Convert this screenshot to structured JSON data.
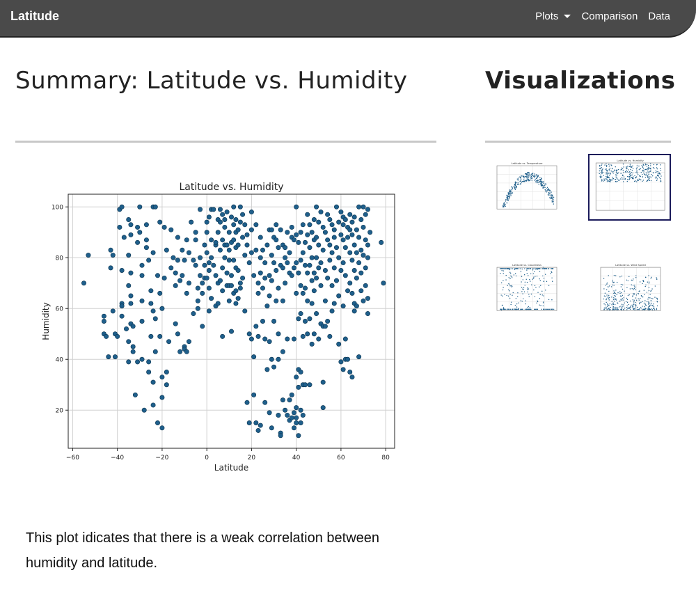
{
  "navbar": {
    "brand": "Latitude",
    "links": [
      {
        "label": "Plots",
        "dropdown": true
      },
      {
        "label": "Comparison",
        "dropdown": false
      },
      {
        "label": "Data",
        "dropdown": false
      }
    ]
  },
  "main": {
    "title": "Summary: Latitude vs. Humidity",
    "caption": "This plot idicates that there is a weak correlation between humidity and latitude."
  },
  "sidebar": {
    "title": "Visualizations",
    "thumbnails": [
      {
        "title": "Latitude vs. Temperature",
        "selected": false
      },
      {
        "title": "Latitude vs. Humidity",
        "selected": true
      },
      {
        "title": "Latitude vs. Cloudiness",
        "selected": false
      },
      {
        "title": "Latitude vs. Wind Speed",
        "selected": false
      }
    ]
  },
  "colors": {
    "navbar": "#4a4a4a",
    "marker": "#1f5f8b",
    "marker_edge": "#0d3550",
    "selected_border": "#1a1a5a"
  },
  "chart_data": {
    "type": "scatter",
    "title": "Latitude vs. Humidity",
    "xlabel": "Latitude",
    "ylabel": "Humidity",
    "xlim": [
      -62,
      84
    ],
    "ylim": [
      5,
      105
    ],
    "xticks": [
      -60,
      -40,
      -20,
      0,
      20,
      40,
      60,
      80
    ],
    "yticks": [
      20,
      40,
      60,
      80,
      100
    ],
    "grid": true,
    "points": [
      [
        -55,
        70
      ],
      [
        -53,
        81
      ],
      [
        -46,
        57
      ],
      [
        -46,
        55
      ],
      [
        -46,
        50
      ],
      [
        -45,
        49
      ],
      [
        -44,
        41
      ],
      [
        -43,
        83
      ],
      [
        -43,
        76
      ],
      [
        -42,
        81
      ],
      [
        -42,
        59
      ],
      [
        -41,
        50
      ],
      [
        -41,
        41
      ],
      [
        -40,
        49
      ],
      [
        -39,
        99
      ],
      [
        -39,
        92
      ],
      [
        -38,
        100
      ],
      [
        -38,
        75
      ],
      [
        -38,
        62
      ],
      [
        -38,
        61
      ],
      [
        -38,
        57
      ],
      [
        -37,
        88
      ],
      [
        -36,
        52
      ],
      [
        -35,
        95
      ],
      [
        -35,
        81
      ],
      [
        -35,
        69
      ],
      [
        -35,
        47
      ],
      [
        -35,
        39
      ],
      [
        -34,
        93
      ],
      [
        -34,
        89
      ],
      [
        -34,
        74
      ],
      [
        -34,
        65
      ],
      [
        -34,
        62
      ],
      [
        -34,
        54
      ],
      [
        -33,
        53
      ],
      [
        -33,
        45
      ],
      [
        -33,
        43
      ],
      [
        -32,
        26
      ],
      [
        -31,
        92
      ],
      [
        -31,
        86
      ],
      [
        -31,
        39
      ],
      [
        -30,
        100
      ],
      [
        -30,
        90
      ],
      [
        -29,
        77
      ],
      [
        -29,
        73
      ],
      [
        -29,
        63
      ],
      [
        -29,
        55
      ],
      [
        -29,
        40
      ],
      [
        -28,
        20
      ],
      [
        -27,
        93
      ],
      [
        -27,
        87
      ],
      [
        -27,
        84
      ],
      [
        -26,
        79
      ],
      [
        -26,
        39
      ],
      [
        -26,
        35
      ],
      [
        -25,
        67
      ],
      [
        -25,
        62
      ],
      [
        -25,
        49
      ],
      [
        -24,
        100
      ],
      [
        -24,
        82
      ],
      [
        -24,
        59
      ],
      [
        -24,
        31
      ],
      [
        -24,
        22
      ],
      [
        -23,
        100
      ],
      [
        -23,
        56
      ],
      [
        -23,
        43
      ],
      [
        -22,
        15
      ],
      [
        -22,
        73
      ],
      [
        -21,
        94
      ],
      [
        -21,
        66
      ],
      [
        -21,
        49
      ],
      [
        -20,
        60
      ],
      [
        -20,
        33
      ],
      [
        -20,
        25
      ],
      [
        -20,
        13
      ],
      [
        -19,
        92
      ],
      [
        -19,
        72
      ],
      [
        -18,
        35
      ],
      [
        -18,
        30
      ],
      [
        -18,
        83
      ],
      [
        -17,
        47
      ],
      [
        -16,
        91
      ],
      [
        -16,
        76
      ],
      [
        -15,
        80
      ],
      [
        -14,
        74
      ],
      [
        -14,
        69
      ],
      [
        -14,
        54
      ],
      [
        -13,
        88
      ],
      [
        -13,
        79
      ],
      [
        -13,
        50
      ],
      [
        -12,
        71
      ],
      [
        -12,
        43
      ],
      [
        -11,
        73
      ],
      [
        -11,
        83
      ],
      [
        -10,
        45
      ],
      [
        -10,
        44
      ],
      [
        -10,
        79
      ],
      [
        -9,
        43
      ],
      [
        -9,
        66
      ],
      [
        -9,
        87
      ],
      [
        -8,
        82
      ],
      [
        -8,
        70
      ],
      [
        -8,
        47
      ],
      [
        -7,
        94
      ],
      [
        -6,
        79
      ],
      [
        -6,
        58
      ],
      [
        -5,
        90
      ],
      [
        -5,
        87
      ],
      [
        -5,
        77
      ],
      [
        -4,
        68
      ],
      [
        -4,
        63
      ],
      [
        -4,
        60
      ],
      [
        -3,
        99
      ],
      [
        -3,
        80
      ],
      [
        -3,
        73
      ],
      [
        -2,
        70
      ],
      [
        -2,
        66
      ],
      [
        -2,
        53
      ],
      [
        -1,
        85
      ],
      [
        -1,
        77
      ],
      [
        -1,
        72
      ],
      [
        0,
        94
      ],
      [
        0,
        90
      ],
      [
        0,
        82
      ],
      [
        0,
        72
      ],
      [
        1,
        96
      ],
      [
        1,
        78
      ],
      [
        1,
        75
      ],
      [
        1,
        68
      ],
      [
        1,
        59
      ],
      [
        2,
        99
      ],
      [
        2,
        87
      ],
      [
        2,
        80
      ],
      [
        2,
        64
      ],
      [
        3,
        99
      ],
      [
        3,
        77
      ],
      [
        4,
        85
      ],
      [
        4,
        73
      ],
      [
        4,
        61
      ],
      [
        4,
        86
      ],
      [
        5,
        95
      ],
      [
        5,
        90
      ],
      [
        5,
        70
      ],
      [
        5,
        62
      ],
      [
        6,
        99
      ],
      [
        6,
        94
      ],
      [
        6,
        83
      ],
      [
        6,
        71
      ],
      [
        7,
        97
      ],
      [
        7,
        87
      ],
      [
        7,
        76
      ],
      [
        7,
        49
      ],
      [
        7,
        67
      ],
      [
        8,
        95
      ],
      [
        8,
        92
      ],
      [
        8,
        85
      ],
      [
        8,
        80
      ],
      [
        9,
        98
      ],
      [
        9,
        85
      ],
      [
        9,
        74
      ],
      [
        9,
        69
      ],
      [
        10,
        90
      ],
      [
        10,
        83
      ],
      [
        10,
        69
      ],
      [
        10,
        63
      ],
      [
        10,
        79
      ],
      [
        11,
        96
      ],
      [
        11,
        86
      ],
      [
        11,
        73
      ],
      [
        11,
        69
      ],
      [
        11,
        51
      ],
      [
        12,
        100
      ],
      [
        12,
        93
      ],
      [
        12,
        87
      ],
      [
        12,
        79
      ],
      [
        12,
        66
      ],
      [
        13,
        95
      ],
      [
        13,
        90
      ],
      [
        13,
        84
      ],
      [
        13,
        76
      ],
      [
        13,
        67
      ],
      [
        13,
        62
      ],
      [
        14,
        91
      ],
      [
        14,
        85
      ],
      [
        14,
        75
      ],
      [
        14,
        64
      ],
      [
        15,
        100
      ],
      [
        15,
        94
      ],
      [
        15,
        70
      ],
      [
        15,
        68
      ],
      [
        16,
        97
      ],
      [
        16,
        88
      ],
      [
        16,
        72
      ],
      [
        17,
        93
      ],
      [
        17,
        81
      ],
      [
        17,
        59
      ],
      [
        18,
        89
      ],
      [
        18,
        85
      ],
      [
        18,
        23
      ],
      [
        19,
        78
      ],
      [
        19,
        50
      ],
      [
        19,
        15
      ],
      [
        20,
        98
      ],
      [
        20,
        91
      ],
      [
        20,
        82
      ],
      [
        20,
        48
      ],
      [
        21,
        73
      ],
      [
        21,
        41
      ],
      [
        21,
        26
      ],
      [
        22,
        93
      ],
      [
        22,
        83
      ],
      [
        22,
        53
      ],
      [
        22,
        15
      ],
      [
        23,
        70
      ],
      [
        23,
        66
      ],
      [
        23,
        49
      ],
      [
        23,
        12
      ],
      [
        24,
        88
      ],
      [
        24,
        80
      ],
      [
        24,
        74
      ],
      [
        24,
        14
      ],
      [
        25,
        83
      ],
      [
        25,
        68
      ],
      [
        25,
        55
      ],
      [
        26,
        78
      ],
      [
        26,
        72
      ],
      [
        26,
        48
      ],
      [
        26,
        23
      ],
      [
        27,
        85
      ],
      [
        27,
        61
      ],
      [
        27,
        36
      ],
      [
        28,
        91
      ],
      [
        28,
        73
      ],
      [
        28,
        65
      ],
      [
        28,
        47
      ],
      [
        28,
        19
      ],
      [
        29,
        91
      ],
      [
        29,
        81
      ],
      [
        29,
        71
      ],
      [
        29,
        40
      ],
      [
        29,
        13
      ],
      [
        30,
        88
      ],
      [
        30,
        78
      ],
      [
        30,
        55
      ],
      [
        30,
        37
      ],
      [
        31,
        93
      ],
      [
        31,
        87
      ],
      [
        31,
        75
      ],
      [
        31,
        63
      ],
      [
        32,
        84
      ],
      [
        32,
        68
      ],
      [
        32,
        50
      ],
      [
        32,
        40
      ],
      [
        32,
        18
      ],
      [
        33,
        91
      ],
      [
        33,
        77
      ],
      [
        33,
        11
      ],
      [
        33,
        10
      ],
      [
        34,
        85
      ],
      [
        34,
        76
      ],
      [
        34,
        63
      ],
      [
        34,
        43
      ],
      [
        34,
        24
      ],
      [
        35,
        84
      ],
      [
        35,
        80
      ],
      [
        35,
        70
      ],
      [
        35,
        20
      ],
      [
        36,
        90
      ],
      [
        36,
        78
      ],
      [
        36,
        48
      ],
      [
        36,
        18
      ],
      [
        37,
        82
      ],
      [
        37,
        74
      ],
      [
        37,
        24
      ],
      [
        37,
        16
      ],
      [
        38,
        92
      ],
      [
        38,
        88
      ],
      [
        38,
        73
      ],
      [
        38,
        26
      ],
      [
        38,
        17
      ],
      [
        39,
        87
      ],
      [
        39,
        76
      ],
      [
        39,
        48
      ],
      [
        39,
        19
      ],
      [
        39,
        13
      ],
      [
        40,
        100
      ],
      [
        40,
        89
      ],
      [
        40,
        78
      ],
      [
        40,
        66
      ],
      [
        40,
        33
      ],
      [
        40,
        21
      ],
      [
        40,
        17
      ],
      [
        40,
        15
      ],
      [
        41,
        86
      ],
      [
        41,
        74
      ],
      [
        41,
        56
      ],
      [
        41,
        36
      ],
      [
        41,
        29
      ],
      [
        41,
        10
      ],
      [
        42,
        90
      ],
      [
        42,
        79
      ],
      [
        42,
        69
      ],
      [
        42,
        58
      ],
      [
        42,
        35
      ],
      [
        42,
        20
      ],
      [
        42,
        15
      ],
      [
        43,
        93
      ],
      [
        43,
        82
      ],
      [
        43,
        66
      ],
      [
        43,
        49
      ],
      [
        43,
        30
      ],
      [
        43,
        18
      ],
      [
        44,
        86
      ],
      [
        44,
        77
      ],
      [
        44,
        68
      ],
      [
        44,
        55
      ],
      [
        44,
        30
      ],
      [
        45,
        97
      ],
      [
        45,
        89
      ],
      [
        45,
        74
      ],
      [
        45,
        63
      ],
      [
        45,
        50
      ],
      [
        46,
        93
      ],
      [
        46,
        84
      ],
      [
        46,
        77
      ],
      [
        46,
        56
      ],
      [
        46,
        30
      ],
      [
        47,
        90
      ],
      [
        47,
        80
      ],
      [
        47,
        71
      ],
      [
        47,
        62
      ],
      [
        47,
        46
      ],
      [
        48,
        95
      ],
      [
        48,
        87
      ],
      [
        48,
        74
      ],
      [
        48,
        67
      ],
      [
        48,
        50
      ],
      [
        49,
        100
      ],
      [
        49,
        88
      ],
      [
        49,
        80
      ],
      [
        49,
        72
      ],
      [
        49,
        58
      ],
      [
        50,
        94
      ],
      [
        50,
        85
      ],
      [
        50,
        76
      ],
      [
        50,
        48
      ],
      [
        51,
        98
      ],
      [
        51,
        78
      ],
      [
        51,
        69
      ],
      [
        51,
        54
      ],
      [
        52,
        92
      ],
      [
        52,
        83
      ],
      [
        52,
        53
      ],
      [
        52,
        31
      ],
      [
        52,
        21
      ],
      [
        53,
        90
      ],
      [
        53,
        75
      ],
      [
        53,
        63
      ],
      [
        53,
        53
      ],
      [
        54,
        97
      ],
      [
        54,
        87
      ],
      [
        54,
        72
      ],
      [
        54,
        55
      ],
      [
        55,
        95
      ],
      [
        55,
        85
      ],
      [
        55,
        79
      ],
      [
        55,
        49
      ],
      [
        56,
        93
      ],
      [
        56,
        82
      ],
      [
        56,
        69
      ],
      [
        56,
        59
      ],
      [
        57,
        91
      ],
      [
        57,
        88
      ],
      [
        57,
        76
      ],
      [
        57,
        62
      ],
      [
        58,
        100
      ],
      [
        58,
        84
      ],
      [
        58,
        71
      ],
      [
        59,
        94
      ],
      [
        59,
        80
      ],
      [
        59,
        65
      ],
      [
        59,
        46
      ],
      [
        60,
        98
      ],
      [
        60,
        89
      ],
      [
        60,
        75
      ],
      [
        60,
        39
      ],
      [
        61,
        96
      ],
      [
        61,
        93
      ],
      [
        61,
        87
      ],
      [
        61,
        78
      ],
      [
        61,
        61
      ],
      [
        61,
        36
      ],
      [
        62,
        95
      ],
      [
        62,
        84
      ],
      [
        62,
        73
      ],
      [
        62,
        48
      ],
      [
        62,
        40
      ],
      [
        63,
        92
      ],
      [
        63,
        88
      ],
      [
        63,
        67
      ],
      [
        63,
        40
      ],
      [
        64,
        97
      ],
      [
        64,
        91
      ],
      [
        64,
        82
      ],
      [
        64,
        70
      ],
      [
        64,
        35
      ],
      [
        65,
        94
      ],
      [
        65,
        89
      ],
      [
        65,
        79
      ],
      [
        65,
        66
      ],
      [
        65,
        33
      ],
      [
        66,
        96
      ],
      [
        66,
        85
      ],
      [
        66,
        75
      ],
      [
        66,
        62
      ],
      [
        66,
        59
      ],
      [
        67,
        91
      ],
      [
        67,
        82
      ],
      [
        67,
        72
      ],
      [
        67,
        61
      ],
      [
        68,
        100
      ],
      [
        68,
        88
      ],
      [
        68,
        78
      ],
      [
        68,
        41
      ],
      [
        69,
        95
      ],
      [
        69,
        83
      ],
      [
        69,
        74
      ],
      [
        69,
        67
      ],
      [
        70,
        100
      ],
      [
        70,
        92
      ],
      [
        70,
        81
      ],
      [
        70,
        63
      ],
      [
        71,
        97
      ],
      [
        71,
        87
      ],
      [
        71,
        76
      ],
      [
        71,
        69
      ],
      [
        72,
        99
      ],
      [
        72,
        85
      ],
      [
        72,
        80
      ],
      [
        72,
        64
      ],
      [
        72,
        58
      ],
      [
        73,
        90
      ],
      [
        78,
        86
      ],
      [
        79,
        70
      ]
    ]
  }
}
